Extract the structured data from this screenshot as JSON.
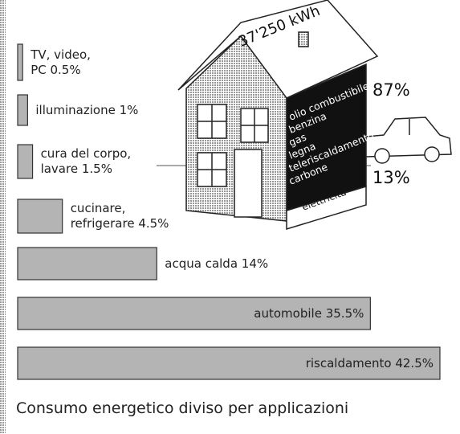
{
  "chart_data": {
    "type": "bar",
    "orientation": "horizontal",
    "categories": [
      "TV, video, PC",
      "illuminazione",
      "cura del corpo, lavare",
      "cucinare, refrigerare",
      "acqua calda",
      "automobile",
      "riscaldamento"
    ],
    "values": [
      0.5,
      1,
      1.5,
      4.5,
      14,
      35.5,
      42.5
    ],
    "value_labels": [
      "0.5%",
      "1%",
      "1.5%",
      "4.5%",
      "14%",
      "35.5%",
      "42.5%"
    ],
    "color": "#b4b4b4",
    "caption": "Consumo energetico diviso per applicazioni"
  },
  "illustration": {
    "total": "37'250 kWh",
    "fuels": [
      "olio combustibile",
      "benzina",
      "gas",
      "legna",
      "teleriscaldamento",
      "carbone"
    ],
    "fuel_share": "87%",
    "electricity": "elettricità",
    "electricity_share": "13%"
  }
}
